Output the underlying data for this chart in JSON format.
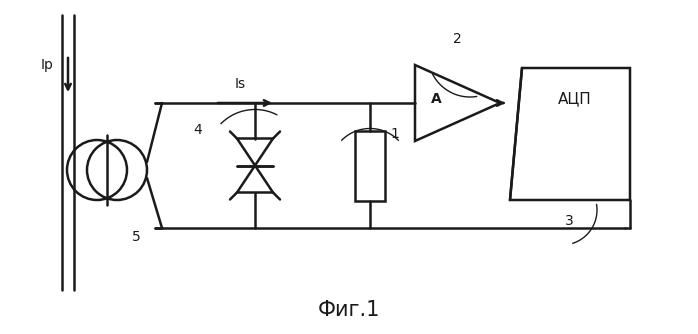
{
  "bg_color": "#ffffff",
  "line_color": "#1a1a1a",
  "fig_width": 6.98,
  "fig_height": 3.34,
  "title": "Фиг.1",
  "title_fontsize": 15,
  "label_Ip": "Ip",
  "label_Is": "Is",
  "label_A": "A",
  "label_ADC": "АЦП",
  "label_1": "1",
  "label_2": "2",
  "label_3": "3",
  "label_4": "4",
  "label_5": "5"
}
